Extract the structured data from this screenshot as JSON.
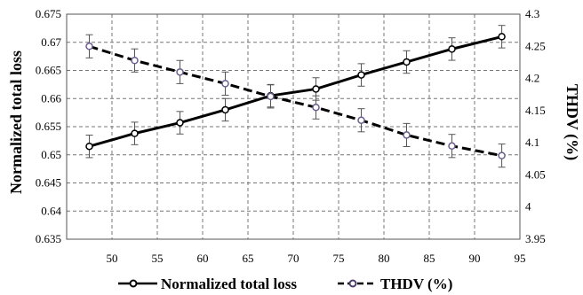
{
  "chart_data": {
    "type": "line",
    "x": [
      47.5,
      52.5,
      57.5,
      62.5,
      67.5,
      72.5,
      77.5,
      82.5,
      87.5,
      93
    ],
    "xlim": [
      45,
      95
    ],
    "xticks": [
      50,
      55,
      60,
      65,
      70,
      75,
      80,
      85,
      90,
      95
    ],
    "ylabel_left": "Normalized total loss",
    "ylim_left": [
      0.635,
      0.675
    ],
    "yticks_left": [
      0.635,
      0.64,
      0.645,
      0.65,
      0.655,
      0.66,
      0.665,
      0.67,
      0.675
    ],
    "ylabel_right": "THDV (%)",
    "ylim_right": [
      3.95,
      4.3
    ],
    "yticks_right": [
      3.95,
      4,
      4.05,
      4.1,
      4.15,
      4.2,
      4.25,
      4.3
    ],
    "grid": true,
    "legend_position": "bottom",
    "series": [
      {
        "name": "Normalized total loss",
        "axis": "left",
        "style": "solid",
        "color": "#000000",
        "values": [
          0.6515,
          0.6538,
          0.6557,
          0.658,
          0.6605,
          0.6617,
          0.6642,
          0.6665,
          0.6688,
          0.671
        ],
        "error": [
          0.002,
          0.002,
          0.002,
          0.002,
          0.002,
          0.002,
          0.002,
          0.002,
          0.002,
          0.002
        ]
      },
      {
        "name": "THDV (%)",
        "axis": "right",
        "style": "dashed",
        "color": "#000000",
        "values": [
          4.25,
          4.228,
          4.21,
          4.192,
          4.172,
          4.155,
          4.135,
          4.112,
          4.095,
          4.08
        ],
        "error": [
          0.018,
          0.018,
          0.018,
          0.018,
          0.018,
          0.018,
          0.018,
          0.018,
          0.018,
          0.018
        ]
      }
    ]
  }
}
